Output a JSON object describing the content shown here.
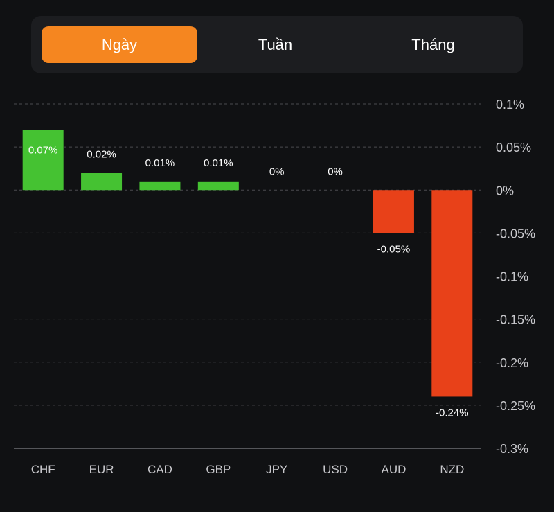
{
  "tabs": [
    {
      "label": "Ngày",
      "active": true
    },
    {
      "label": "Tuần",
      "active": false
    },
    {
      "label": "Tháng",
      "active": false
    }
  ],
  "colors": {
    "positive": "#45c232",
    "negative": "#e84119",
    "accent": "#f58620"
  },
  "chart_data": {
    "type": "bar",
    "categories": [
      "CHF",
      "EUR",
      "CAD",
      "GBP",
      "JPY",
      "USD",
      "AUD",
      "NZD"
    ],
    "values": [
      0.07,
      0.02,
      0.01,
      0.01,
      0,
      0,
      -0.05,
      -0.24
    ],
    "data_labels": [
      "0.07%",
      "0.02%",
      "0.01%",
      "0.01%",
      "0%",
      "0%",
      "-0.05%",
      "-0.24%"
    ],
    "yticks": [
      0.1,
      0.05,
      0,
      -0.05,
      -0.1,
      -0.15,
      -0.2,
      -0.25,
      -0.3
    ],
    "ytick_labels": [
      "0.1%",
      "0.05%",
      "0%",
      "-0.05%",
      "-0.1%",
      "-0.15%",
      "-0.2%",
      "-0.25%",
      "-0.3%"
    ],
    "ylim": [
      -0.3,
      0.1
    ],
    "grid": true,
    "title": "",
    "xlabel": "",
    "ylabel": ""
  }
}
